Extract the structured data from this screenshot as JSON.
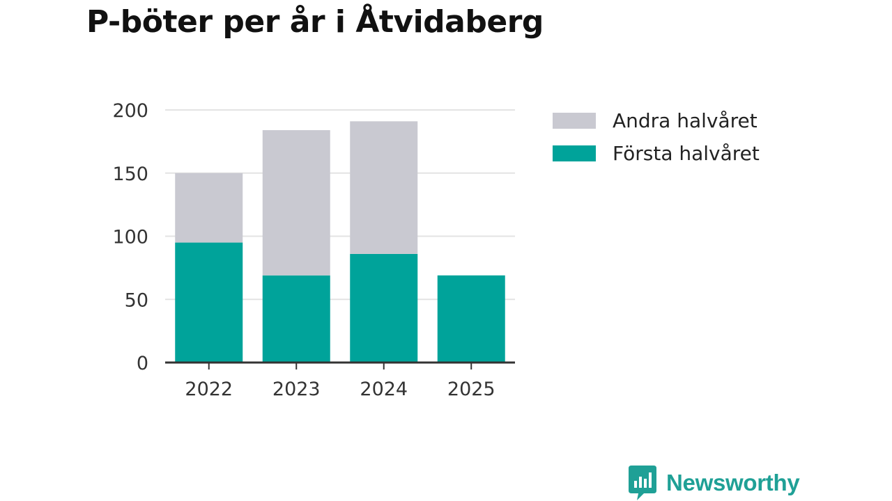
{
  "title": "P-böter per år i Åtvidaberg",
  "chart_data": {
    "type": "bar",
    "stacked": true,
    "title": "P-böter per år i Åtvidaberg",
    "xlabel": "",
    "ylabel": "",
    "categories": [
      "2022",
      "2023",
      "2024",
      "2025"
    ],
    "series": [
      {
        "name": "Första halvåret",
        "color": "#00a39a",
        "values": [
          95,
          69,
          86,
          69
        ]
      },
      {
        "name": "Andra halvåret",
        "color": "#c9c9d1",
        "values": [
          55,
          115,
          105,
          0
        ]
      }
    ],
    "ylim": [
      0,
      200
    ],
    "yticks": [
      "0",
      "50",
      "100",
      "150",
      "200"
    ],
    "grid": true,
    "legend_position": "right"
  },
  "legend": {
    "items": [
      {
        "label": "Andra halvåret",
        "color": "#c9c9d1"
      },
      {
        "label": "Första halvåret",
        "color": "#00a39a"
      }
    ]
  },
  "brand": {
    "name": "Newsworthy",
    "color": "#1fa096"
  }
}
